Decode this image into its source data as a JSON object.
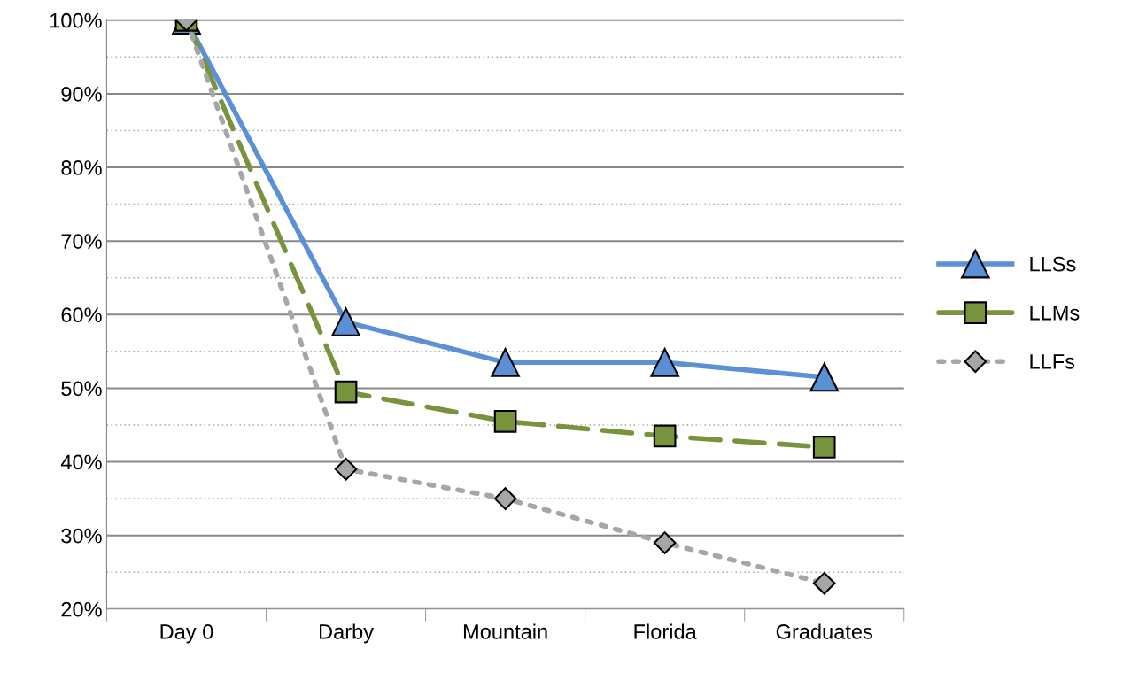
{
  "chart_data": {
    "type": "line",
    "categories": [
      "Day 0",
      "Darby",
      "Mountain",
      "Florida",
      "Graduates"
    ],
    "series": [
      {
        "name": "LLSs",
        "color": "#5b8fd6",
        "marker": "triangle",
        "line_style": "solid",
        "values": [
          100,
          59,
          53.5,
          53.5,
          51.5
        ]
      },
      {
        "name": "LLMs",
        "color": "#77933c",
        "marker": "square",
        "line_style": "dashed",
        "values": [
          100,
          49.5,
          45.5,
          43.5,
          42
        ]
      },
      {
        "name": "LLFs",
        "color": "#a6a6a6",
        "marker": "diamond",
        "line_style": "dotted",
        "values": [
          100,
          39,
          35,
          29,
          23.5
        ]
      }
    ],
    "ylim": [
      20,
      100
    ],
    "yticks": [
      {
        "value": 20,
        "label": "20%"
      },
      {
        "value": 25,
        "label": null
      },
      {
        "value": 30,
        "label": "30%"
      },
      {
        "value": 35,
        "label": null
      },
      {
        "value": 40,
        "label": "40%"
      },
      {
        "value": 45,
        "label": null
      },
      {
        "value": 50,
        "label": "50%"
      },
      {
        "value": 55,
        "label": null
      },
      {
        "value": 60,
        "label": "60%"
      },
      {
        "value": 65,
        "label": null
      },
      {
        "value": 70,
        "label": "70%"
      },
      {
        "value": 75,
        "label": null
      },
      {
        "value": 80,
        "label": "80%"
      },
      {
        "value": 85,
        "label": null
      },
      {
        "value": 90,
        "label": "90%"
      },
      {
        "value": 95,
        "label": null
      },
      {
        "value": 100,
        "label": "100%"
      }
    ],
    "grid": "y",
    "legend": "right"
  }
}
